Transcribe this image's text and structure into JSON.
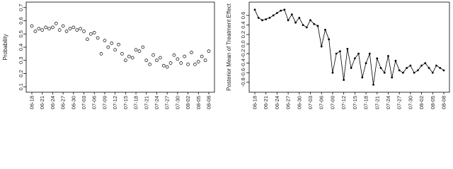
{
  "chart_data": [
    {
      "type": "scatter",
      "y_label": "Probability",
      "color": "#000000",
      "categories": [
        "06-18",
        null,
        null,
        "06-21",
        null,
        null,
        "06-24",
        null,
        null,
        "06-27",
        null,
        null,
        "06-30",
        null,
        null,
        "07-03",
        null,
        null,
        "07-06",
        null,
        null,
        "07-09",
        null,
        null,
        "07-12",
        null,
        null,
        "07-15",
        null,
        null,
        "07-18",
        null,
        null,
        "07-21",
        null,
        null,
        "07-24",
        null,
        null,
        "07-27",
        null,
        null,
        "07-30",
        null,
        null,
        "08-02",
        null,
        null,
        "08-05",
        null,
        null,
        "08-08"
      ],
      "values": [
        0.56,
        0.52,
        0.54,
        0.53,
        0.55,
        0.54,
        0.55,
        0.58,
        0.53,
        0.56,
        0.52,
        0.54,
        0.55,
        0.53,
        0.54,
        0.52,
        0.46,
        0.5,
        0.51,
        0.47,
        0.35,
        0.45,
        0.4,
        0.43,
        0.38,
        0.42,
        0.35,
        0.3,
        0.33,
        0.32,
        0.38,
        0.37,
        0.4,
        0.3,
        0.27,
        0.34,
        0.3,
        0.32,
        0.26,
        0.25,
        0.28,
        0.34,
        0.31,
        0.28,
        0.33,
        0.27,
        0.36,
        0.27,
        0.29,
        0.33,
        0.3,
        0.37
      ],
      "ylim": [
        0.08,
        0.72
      ],
      "yticks": [
        0.1,
        0.2,
        0.3,
        0.4,
        0.5,
        0.6,
        0.7
      ]
    },
    {
      "type": "line",
      "y_label": "Posterior Mean of Treatment Effect",
      "color": "#000000",
      "categories": [
        "06-18",
        null,
        null,
        "06-21",
        null,
        null,
        "06-24",
        null,
        null,
        "06-27",
        null,
        null,
        "06-30",
        null,
        null,
        "07-03",
        null,
        null,
        "07-06",
        null,
        null,
        "07-09",
        null,
        null,
        "07-12",
        null,
        null,
        "07-15",
        null,
        null,
        "07-18",
        null,
        null,
        "07-21",
        null,
        null,
        "07-24",
        null,
        null,
        "07-27",
        null,
        null,
        "07-30",
        null,
        null,
        "08-02",
        null,
        null,
        "08-05",
        null,
        null,
        "08-08"
      ],
      "values": [
        0.72,
        0.55,
        0.5,
        0.52,
        0.55,
        0.6,
        0.65,
        0.7,
        0.72,
        0.5,
        0.62,
        0.45,
        0.55,
        0.4,
        0.35,
        0.5,
        0.42,
        0.38,
        -0.05,
        0.3,
        0.1,
        -0.6,
        -0.2,
        -0.15,
        -0.75,
        -0.1,
        -0.5,
        -0.3,
        -0.2,
        -0.7,
        -0.4,
        -0.2,
        -0.85,
        -0.3,
        -0.5,
        -0.6,
        -0.25,
        -0.7,
        -0.35,
        -0.55,
        -0.6,
        -0.5,
        -0.45,
        -0.6,
        -0.55,
        -0.45,
        -0.4,
        -0.5,
        -0.6,
        -0.45,
        -0.5,
        -0.55
      ],
      "ylim": [
        -0.95,
        0.82
      ],
      "yticks": [
        -0.8,
        -0.6,
        -0.4,
        -0.2,
        {
          "value": 0,
          "label": "0.0"
        },
        0.2,
        0.4,
        0.6
      ]
    }
  ]
}
